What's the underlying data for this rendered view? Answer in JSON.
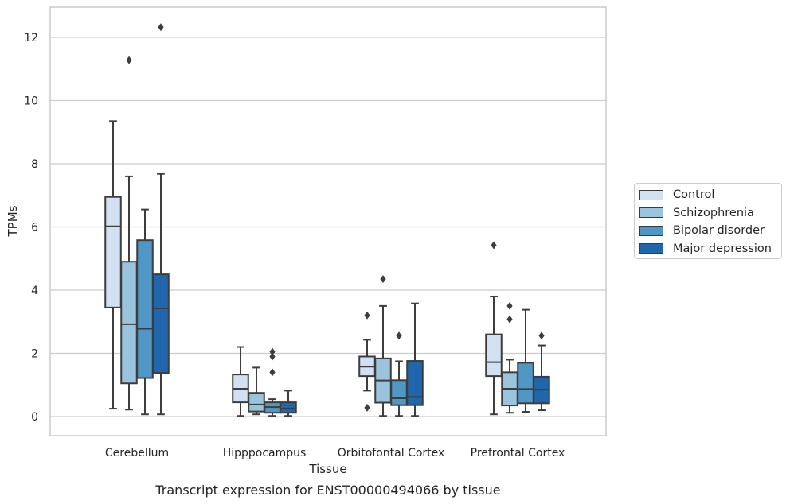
{
  "chart_data": {
    "type": "box",
    "title": "Transcript expression for ENST00000494066 by tissue",
    "xlabel": "Tissue",
    "ylabel": "TPMs",
    "ylim": [
      -0.6,
      12.95
    ],
    "yticks": [
      0,
      2,
      4,
      6,
      8,
      10,
      12
    ],
    "grid": true,
    "legend_position": "right",
    "categories": [
      "Cerebellum",
      "Hipppocampus",
      "Orbitofontal Cortex",
      "Prefrontal Cortex"
    ],
    "series": [
      {
        "name": "Control",
        "color": "#d1e1f1",
        "boxes": [
          {
            "whislo": 0.25,
            "q1": 3.45,
            "med": 6.02,
            "q3": 6.95,
            "whishi": 9.35,
            "fliers": []
          },
          {
            "whislo": 0.02,
            "q1": 0.45,
            "med": 0.88,
            "q3": 1.33,
            "whishi": 2.2,
            "fliers": []
          },
          {
            "whislo": 0.82,
            "q1": 1.28,
            "med": 1.58,
            "q3": 1.9,
            "whishi": 2.43,
            "fliers": [
              3.2,
              0.28
            ]
          },
          {
            "whislo": 0.07,
            "q1": 1.28,
            "med": 1.72,
            "q3": 2.6,
            "whishi": 3.8,
            "fliers": [
              5.42
            ]
          }
        ]
      },
      {
        "name": "Schizophrenia",
        "color": "#9ac4de",
        "boxes": [
          {
            "whislo": 0.22,
            "q1": 1.05,
            "med": 2.92,
            "q3": 4.9,
            "whishi": 7.6,
            "fliers": [
              11.28
            ]
          },
          {
            "whislo": 0.07,
            "q1": 0.16,
            "med": 0.38,
            "q3": 0.75,
            "whishi": 1.55,
            "fliers": []
          },
          {
            "whislo": 0.02,
            "q1": 0.44,
            "med": 1.14,
            "q3": 1.84,
            "whishi": 3.5,
            "fliers": [
              4.35
            ]
          },
          {
            "whislo": 0.12,
            "q1": 0.35,
            "med": 0.88,
            "q3": 1.4,
            "whishi": 1.8,
            "fliers": [
              3.5,
              3.08
            ]
          }
        ]
      },
      {
        "name": "Bipolar disorder",
        "color": "#5197c6",
        "boxes": [
          {
            "whislo": 0.07,
            "q1": 1.22,
            "med": 2.78,
            "q3": 5.58,
            "whishi": 6.55,
            "fliers": []
          },
          {
            "whislo": 0.02,
            "q1": 0.12,
            "med": 0.3,
            "q3": 0.45,
            "whishi": 0.55,
            "fliers": [
              2.05,
              1.9,
              1.4
            ]
          },
          {
            "whislo": 0.02,
            "q1": 0.36,
            "med": 0.58,
            "q3": 1.15,
            "whishi": 1.75,
            "fliers": [
              2.56
            ]
          },
          {
            "whislo": 0.15,
            "q1": 0.42,
            "med": 0.87,
            "q3": 1.7,
            "whishi": 3.38,
            "fliers": []
          }
        ]
      },
      {
        "name": "Major depression",
        "color": "#2066ac",
        "boxes": [
          {
            "whislo": 0.07,
            "q1": 1.38,
            "med": 3.42,
            "q3": 4.5,
            "whishi": 7.68,
            "fliers": [
              12.32
            ]
          },
          {
            "whislo": 0.02,
            "q1": 0.12,
            "med": 0.25,
            "q3": 0.45,
            "whishi": 0.82,
            "fliers": []
          },
          {
            "whislo": 0.02,
            "q1": 0.36,
            "med": 0.62,
            "q3": 1.76,
            "whishi": 3.58,
            "fliers": []
          },
          {
            "whislo": 0.2,
            "q1": 0.42,
            "med": 0.85,
            "q3": 1.26,
            "whishi": 2.25,
            "fliers": [
              2.56
            ]
          }
        ]
      }
    ]
  }
}
